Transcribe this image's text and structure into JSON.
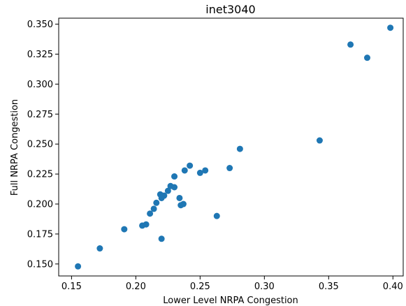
{
  "chart_data": {
    "type": "scatter",
    "title": "inet3040",
    "xlabel": "Lower Level NRPA Congestion",
    "ylabel": "Full NRPA Congestion",
    "xlim": [
      0.14,
      0.408
    ],
    "ylim": [
      0.14,
      0.355
    ],
    "xticks": [
      "0.15",
      "0.20",
      "0.25",
      "0.30",
      "0.35",
      "0.40"
    ],
    "yticks": [
      "0.150",
      "0.175",
      "0.200",
      "0.225",
      "0.250",
      "0.275",
      "0.300",
      "0.325",
      "0.350"
    ],
    "grid": false,
    "marker_color": "#1f77b4",
    "points": [
      {
        "x": 0.155,
        "y": 0.148
      },
      {
        "x": 0.172,
        "y": 0.163
      },
      {
        "x": 0.191,
        "y": 0.179
      },
      {
        "x": 0.205,
        "y": 0.182
      },
      {
        "x": 0.208,
        "y": 0.183
      },
      {
        "x": 0.211,
        "y": 0.192
      },
      {
        "x": 0.214,
        "y": 0.196
      },
      {
        "x": 0.216,
        "y": 0.201
      },
      {
        "x": 0.219,
        "y": 0.208
      },
      {
        "x": 0.22,
        "y": 0.205
      },
      {
        "x": 0.222,
        "y": 0.207
      },
      {
        "x": 0.22,
        "y": 0.171
      },
      {
        "x": 0.225,
        "y": 0.211
      },
      {
        "x": 0.227,
        "y": 0.215
      },
      {
        "x": 0.23,
        "y": 0.214
      },
      {
        "x": 0.23,
        "y": 0.223
      },
      {
        "x": 0.234,
        "y": 0.205
      },
      {
        "x": 0.235,
        "y": 0.199
      },
      {
        "x": 0.237,
        "y": 0.2
      },
      {
        "x": 0.238,
        "y": 0.228
      },
      {
        "x": 0.242,
        "y": 0.232
      },
      {
        "x": 0.25,
        "y": 0.226
      },
      {
        "x": 0.254,
        "y": 0.228
      },
      {
        "x": 0.263,
        "y": 0.19
      },
      {
        "x": 0.273,
        "y": 0.23
      },
      {
        "x": 0.281,
        "y": 0.246
      },
      {
        "x": 0.343,
        "y": 0.253
      },
      {
        "x": 0.367,
        "y": 0.333
      },
      {
        "x": 0.38,
        "y": 0.322
      },
      {
        "x": 0.398,
        "y": 0.347
      }
    ]
  }
}
